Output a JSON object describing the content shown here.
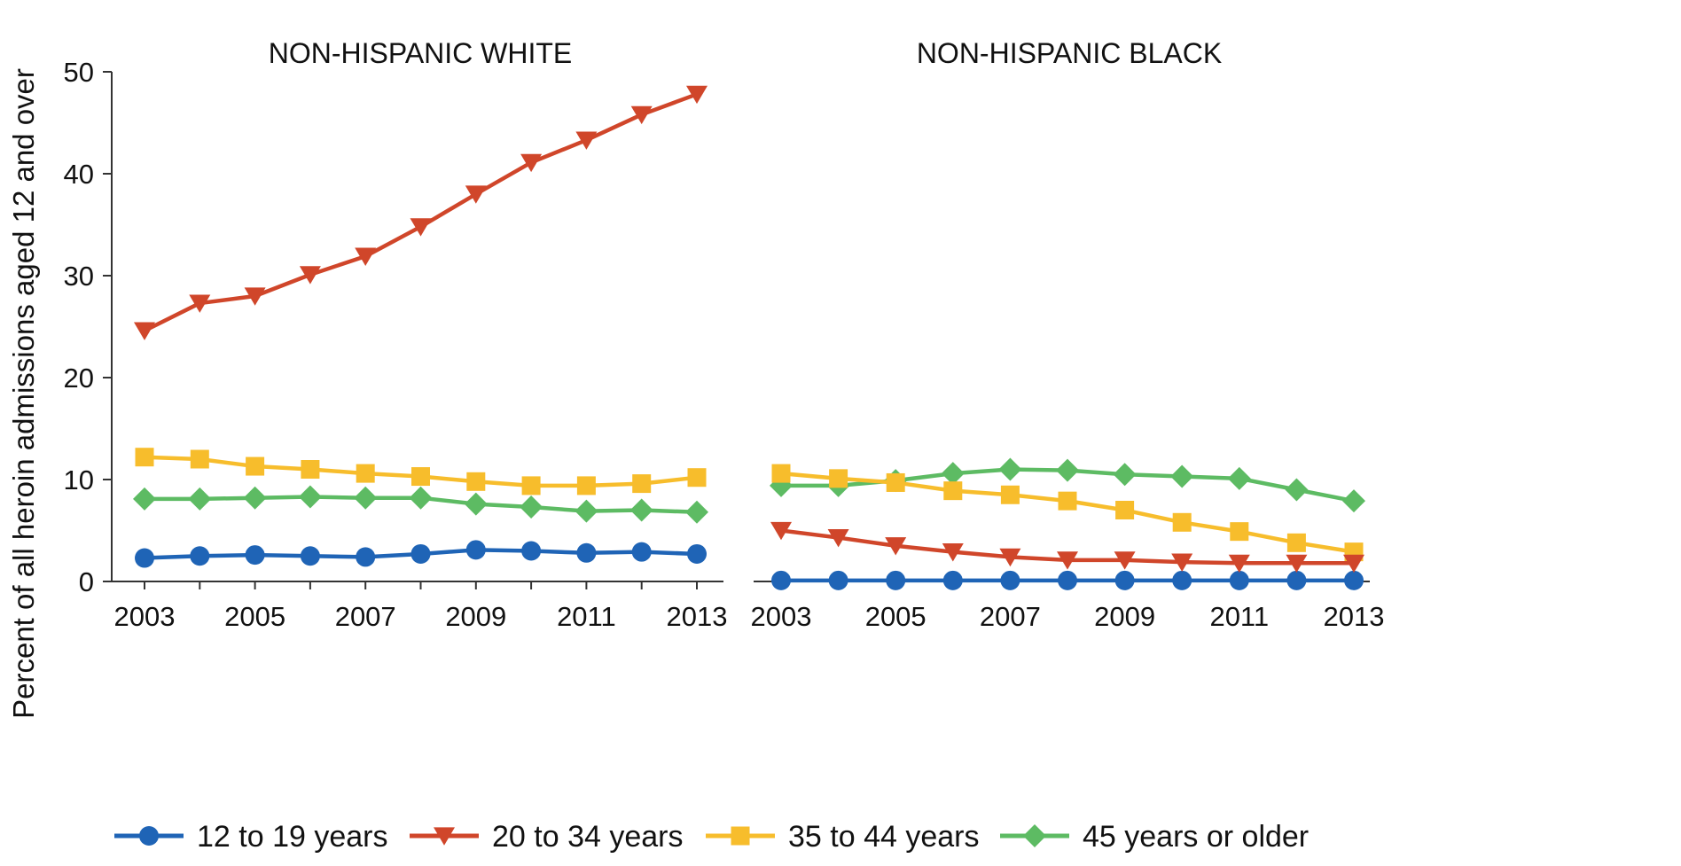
{
  "chart_data": {
    "type": "line",
    "ylabel": "Percent of all heroin admissions aged 12 and over",
    "ylim": [
      0,
      50
    ],
    "yticks": [
      "0",
      "10",
      "20",
      "30",
      "40",
      "50"
    ],
    "x": [
      2003,
      2004,
      2005,
      2006,
      2007,
      2008,
      2009,
      2010,
      2011,
      2012,
      2013
    ],
    "xtick_labels": [
      "2003",
      "2005",
      "2007",
      "2009",
      "2011",
      "2013"
    ],
    "grid": false,
    "legend_position": "bottom",
    "series_style": [
      {
        "name": "12 to 19 years",
        "color": "#1f64b6",
        "marker": "circle"
      },
      {
        "name": "20 to 34 years",
        "color": "#d0462a",
        "marker": "triangle-down"
      },
      {
        "name": "35 to 44 years",
        "color": "#f7bd2c",
        "marker": "square"
      },
      {
        "name": "45 years or older",
        "color": "#5dbb63",
        "marker": "diamond"
      }
    ],
    "panels": [
      {
        "title": "NON-HISPANIC WHITE",
        "series": [
          {
            "name": "12 to 19 years",
            "values": [
              2.3,
              2.5,
              2.6,
              2.5,
              2.4,
              2.7,
              3.1,
              3.0,
              2.8,
              2.9,
              2.7
            ]
          },
          {
            "name": "20 to 34 years",
            "values": [
              24.6,
              27.3,
              28.0,
              30.1,
              31.9,
              34.8,
              38.0,
              41.1,
              43.3,
              45.8,
              47.8
            ]
          },
          {
            "name": "35 to 44 years",
            "values": [
              12.2,
              12.0,
              11.3,
              11.0,
              10.6,
              10.3,
              9.8,
              9.4,
              9.4,
              9.6,
              10.2
            ]
          },
          {
            "name": "45 years or older",
            "values": [
              8.1,
              8.1,
              8.2,
              8.3,
              8.2,
              8.2,
              7.6,
              7.3,
              6.9,
              7.0,
              6.8
            ]
          }
        ]
      },
      {
        "title": "NON-HISPANIC BLACK",
        "series": [
          {
            "name": "12 to 19 years",
            "values": [
              0.1,
              0.1,
              0.1,
              0.1,
              0.1,
              0.1,
              0.1,
              0.1,
              0.1,
              0.1,
              0.1
            ]
          },
          {
            "name": "20 to 34 years",
            "values": [
              5.0,
              4.3,
              3.5,
              2.9,
              2.4,
              2.1,
              2.1,
              1.9,
              1.8,
              1.8,
              1.8
            ]
          },
          {
            "name": "35 to 44 years",
            "values": [
              10.6,
              10.1,
              9.7,
              8.9,
              8.5,
              7.9,
              7.0,
              5.8,
              4.9,
              3.8,
              2.9
            ]
          },
          {
            "name": "45 years or older",
            "values": [
              9.4,
              9.4,
              9.9,
              10.6,
              11.0,
              10.9,
              10.5,
              10.3,
              10.1,
              9.0,
              7.9
            ]
          }
        ]
      }
    ]
  }
}
